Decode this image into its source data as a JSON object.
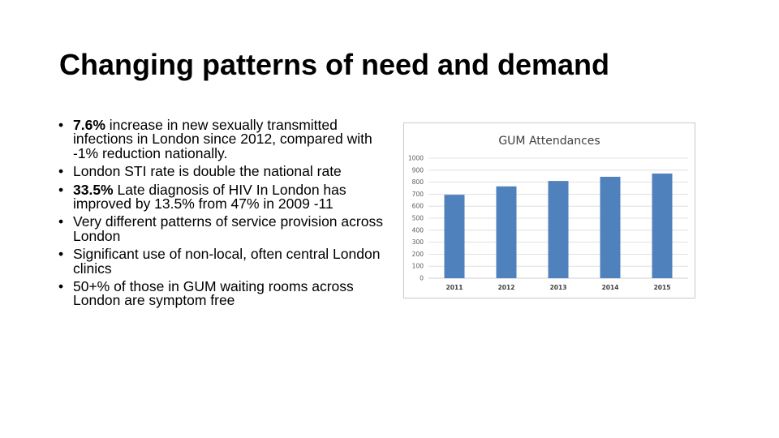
{
  "slide": {
    "title": "Changing patterns of need and demand",
    "bullet_marker": "•"
  },
  "bullets": [
    {
      "bold": "7.6%",
      "text": "  increase in new sexually transmitted infections in London since 2012, compared with -1% reduction nationally."
    },
    {
      "bold": "",
      "text": "London STI rate is double the national rate"
    },
    {
      "bold": "33.5%",
      "text": "  Late diagnosis of HIV In London has improved by 13.5% from 47% in 2009 -11"
    },
    {
      "bold": "",
      "text": "Very different patterns of service provision across London"
    },
    {
      "bold": "",
      "text": "Significant use of non-local, often central London clinics"
    },
    {
      "bold": "",
      "text": "50+% of those in GUM waiting rooms across London are symptom free"
    }
  ],
  "chart_data": {
    "type": "bar",
    "title": "GUM Attendances",
    "categories": [
      "2011",
      "2012",
      "2013",
      "2014",
      "2015"
    ],
    "values": [
      695,
      765,
      810,
      845,
      872
    ],
    "xlabel": "",
    "ylabel": "",
    "ylim": [
      0,
      1000
    ],
    "yticks": [
      0,
      100,
      200,
      300,
      400,
      500,
      600,
      700,
      800,
      900,
      1000
    ],
    "grid": true,
    "legend": "none",
    "bar_color": "#4f81bd",
    "grid_color": "#d9d9d9"
  }
}
